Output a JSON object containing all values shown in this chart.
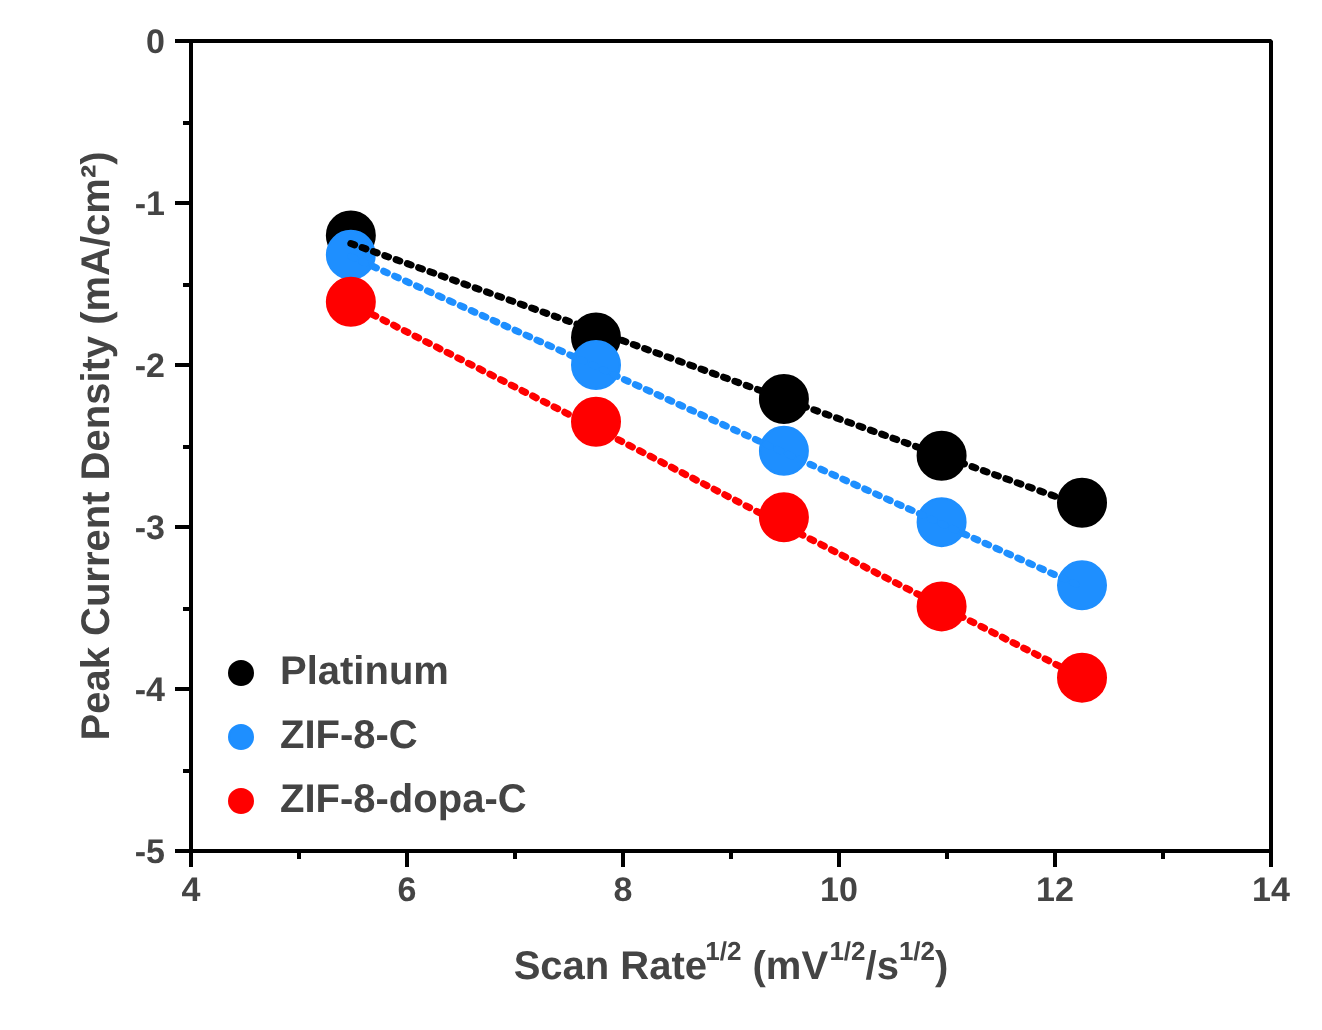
{
  "chart_data": {
    "type": "scatter",
    "xlabel": "Scan Rate$^{1/2}$ (mV$^{1/2}$/s$^{1/2}$)",
    "ylabel": "Peak Current Density (mA/cm²)",
    "x": [
      5.48,
      7.75,
      9.49,
      10.95,
      12.25
    ],
    "series": [
      {
        "name": "Platinum",
        "color": "#000000",
        "values": [
          -1.2,
          -1.83,
          -2.21,
          -2.56,
          -2.85
        ]
      },
      {
        "name": "ZIF-8-C",
        "color": "#1e8fff",
        "values": [
          -1.32,
          -2.0,
          -2.53,
          -2.97,
          -3.36
        ]
      },
      {
        "name": "ZIF-8-dopa-C",
        "color": "#ff0000",
        "values": [
          -1.61,
          -2.35,
          -2.94,
          -3.49,
          -3.93
        ]
      },
      {
        "type": "line",
        "color": "#000000",
        "values": [
          -1.25,
          -1.79,
          -2.21,
          -2.56,
          -2.87
        ],
        "line_style": "dotted",
        "marker": "none"
      },
      {
        "type": "line",
        "color": "#1e8fff",
        "values": [
          -1.33,
          -2.01,
          -2.54,
          -2.98,
          -3.37
        ],
        "line_style": "dotted",
        "marker": "none"
      },
      {
        "type": "line",
        "color": "#ff0000",
        "values": [
          -1.62,
          -2.39,
          -2.99,
          -3.49,
          -3.93
        ],
        "line_style": "dotted",
        "marker": "none"
      }
    ],
    "xlim": [
      4,
      14
    ],
    "xticks": [
      4,
      6,
      8,
      10,
      12,
      14
    ],
    "ylim": [
      -5,
      0
    ],
    "yticks": [
      -5,
      -4,
      -3,
      -2,
      -1,
      0
    ],
    "marker": "circle",
    "grid": false,
    "legend": "bottom left"
  }
}
